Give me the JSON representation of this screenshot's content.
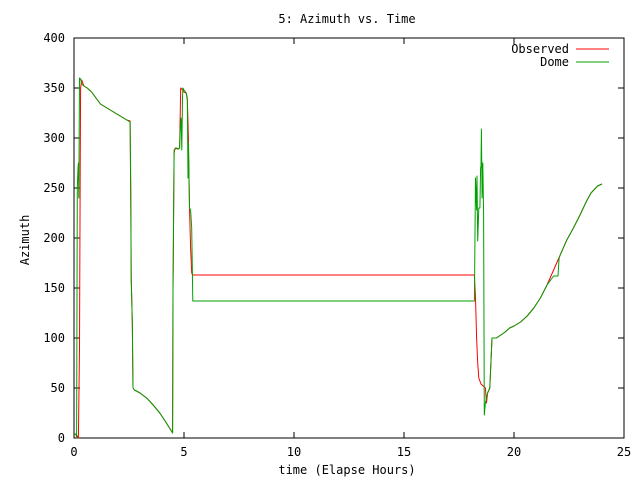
{
  "chart_data": {
    "type": "line",
    "title": "5: Azimuth vs. Time",
    "xlabel": "time (Elapse Hours)",
    "ylabel": "Azimuth",
    "xlim": [
      0,
      25
    ],
    "ylim": [
      0,
      400
    ],
    "xticks": [
      0,
      5,
      10,
      15,
      20,
      25
    ],
    "yticks": [
      0,
      50,
      100,
      150,
      200,
      250,
      300,
      350,
      400
    ],
    "grid": false,
    "legend_position": "top-right",
    "series": [
      {
        "name": "Observed",
        "color": "#ff0000",
        "points": [
          [
            0.0,
            5
          ],
          [
            0.1,
            3
          ],
          [
            0.15,
            2
          ],
          [
            0.2,
            0
          ],
          [
            0.25,
            90
          ],
          [
            0.28,
            270
          ],
          [
            0.3,
            350
          ],
          [
            0.35,
            358
          ],
          [
            0.45,
            352
          ],
          [
            0.6,
            350
          ],
          [
            0.8,
            346
          ],
          [
            1.0,
            340
          ],
          [
            1.2,
            334
          ],
          [
            1.5,
            330
          ],
          [
            1.8,
            326
          ],
          [
            2.1,
            322
          ],
          [
            2.4,
            318
          ],
          [
            2.55,
            317
          ],
          [
            2.58,
            230
          ],
          [
            2.6,
            160
          ],
          [
            2.65,
            116
          ],
          [
            2.68,
            50
          ],
          [
            2.75,
            48
          ],
          [
            3.0,
            45
          ],
          [
            3.3,
            40
          ],
          [
            3.6,
            33
          ],
          [
            3.9,
            25
          ],
          [
            4.2,
            15
          ],
          [
            4.4,
            8
          ],
          [
            4.48,
            5
          ],
          [
            4.5,
            148
          ],
          [
            4.55,
            285
          ],
          [
            4.6,
            290
          ],
          [
            4.7,
            289
          ],
          [
            4.8,
            290
          ],
          [
            4.85,
            350
          ],
          [
            4.95,
            348
          ],
          [
            5.0,
            346
          ],
          [
            5.1,
            345
          ],
          [
            5.15,
            340
          ],
          [
            5.2,
            300
          ],
          [
            5.25,
            230
          ],
          [
            5.3,
            190
          ],
          [
            5.35,
            165
          ],
          [
            5.4,
            163
          ],
          [
            8.0,
            163
          ],
          [
            12.0,
            163
          ],
          [
            16.0,
            163
          ],
          [
            18.2,
            163
          ],
          [
            18.25,
            140
          ],
          [
            18.3,
            100
          ],
          [
            18.35,
            75
          ],
          [
            18.4,
            60
          ],
          [
            18.5,
            54
          ],
          [
            18.6,
            52
          ],
          [
            18.7,
            50
          ],
          [
            18.75,
            35
          ],
          [
            18.8,
            45
          ],
          [
            18.9,
            50
          ],
          [
            19.0,
            100
          ],
          [
            19.2,
            100
          ],
          [
            19.4,
            103
          ],
          [
            19.6,
            106
          ],
          [
            19.8,
            110
          ],
          [
            20.0,
            112
          ],
          [
            20.3,
            116
          ],
          [
            20.6,
            122
          ],
          [
            20.9,
            130
          ],
          [
            21.2,
            140
          ],
          [
            21.5,
            153
          ],
          [
            21.8,
            168
          ],
          [
            22.1,
            183
          ],
          [
            22.4,
            198
          ],
          [
            22.7,
            210
          ],
          [
            23.0,
            223
          ],
          [
            23.3,
            237
          ],
          [
            23.5,
            245
          ],
          [
            23.8,
            252
          ],
          [
            24.0,
            254
          ]
        ]
      },
      {
        "name": "Dome",
        "color": "#00a000",
        "points": [
          [
            0.0,
            5
          ],
          [
            0.1,
            3
          ],
          [
            0.12,
            0
          ],
          [
            0.15,
            250
          ],
          [
            0.18,
            270
          ],
          [
            0.2,
            275
          ],
          [
            0.22,
            240
          ],
          [
            0.25,
            360
          ],
          [
            0.3,
            359
          ],
          [
            0.35,
            354
          ],
          [
            0.45,
            352
          ],
          [
            0.6,
            350
          ],
          [
            0.8,
            346
          ],
          [
            1.0,
            340
          ],
          [
            1.2,
            334
          ],
          [
            1.5,
            330
          ],
          [
            1.8,
            326
          ],
          [
            2.1,
            322
          ],
          [
            2.4,
            318
          ],
          [
            2.55,
            316
          ],
          [
            2.58,
            250
          ],
          [
            2.6,
            160
          ],
          [
            2.65,
            117
          ],
          [
            2.68,
            50
          ],
          [
            2.75,
            48
          ],
          [
            3.0,
            45
          ],
          [
            3.3,
            40
          ],
          [
            3.6,
            33
          ],
          [
            3.9,
            25
          ],
          [
            4.2,
            15
          ],
          [
            4.4,
            8
          ],
          [
            4.48,
            5
          ],
          [
            4.5,
            148
          ],
          [
            4.55,
            288
          ],
          [
            4.65,
            290
          ],
          [
            4.75,
            289
          ],
          [
            4.8,
            290
          ],
          [
            4.83,
            310
          ],
          [
            4.87,
            320
          ],
          [
            4.9,
            288
          ],
          [
            4.93,
            340
          ],
          [
            4.95,
            350
          ],
          [
            5.0,
            348
          ],
          [
            5.1,
            345
          ],
          [
            5.15,
            338
          ],
          [
            5.18,
            260
          ],
          [
            5.2,
            295
          ],
          [
            5.25,
            230
          ],
          [
            5.3,
            228
          ],
          [
            5.35,
            210
          ],
          [
            5.4,
            137
          ],
          [
            8.0,
            137
          ],
          [
            12.0,
            137
          ],
          [
            16.0,
            137
          ],
          [
            18.2,
            137
          ],
          [
            18.25,
            260
          ],
          [
            18.3,
            228
          ],
          [
            18.32,
            262
          ],
          [
            18.35,
            197
          ],
          [
            18.4,
            230
          ],
          [
            18.45,
            230
          ],
          [
            18.48,
            270
          ],
          [
            18.5,
            272
          ],
          [
            18.52,
            309
          ],
          [
            18.55,
            240
          ],
          [
            18.58,
            275
          ],
          [
            18.62,
            225
          ],
          [
            18.65,
            23
          ],
          [
            18.7,
            35
          ],
          [
            18.8,
            45
          ],
          [
            18.9,
            50
          ],
          [
            19.0,
            100
          ],
          [
            19.2,
            100
          ],
          [
            19.4,
            103
          ],
          [
            19.6,
            106
          ],
          [
            19.8,
            110
          ],
          [
            20.0,
            112
          ],
          [
            20.3,
            116
          ],
          [
            20.6,
            122
          ],
          [
            20.9,
            130
          ],
          [
            21.2,
            140
          ],
          [
            21.5,
            153
          ],
          [
            21.8,
            162
          ],
          [
            22.0,
            162
          ],
          [
            22.05,
            180
          ],
          [
            22.1,
            183
          ],
          [
            22.4,
            198
          ],
          [
            22.7,
            210
          ],
          [
            23.0,
            223
          ],
          [
            23.3,
            237
          ],
          [
            23.5,
            245
          ],
          [
            23.8,
            252
          ],
          [
            24.0,
            254
          ]
        ]
      }
    ]
  }
}
